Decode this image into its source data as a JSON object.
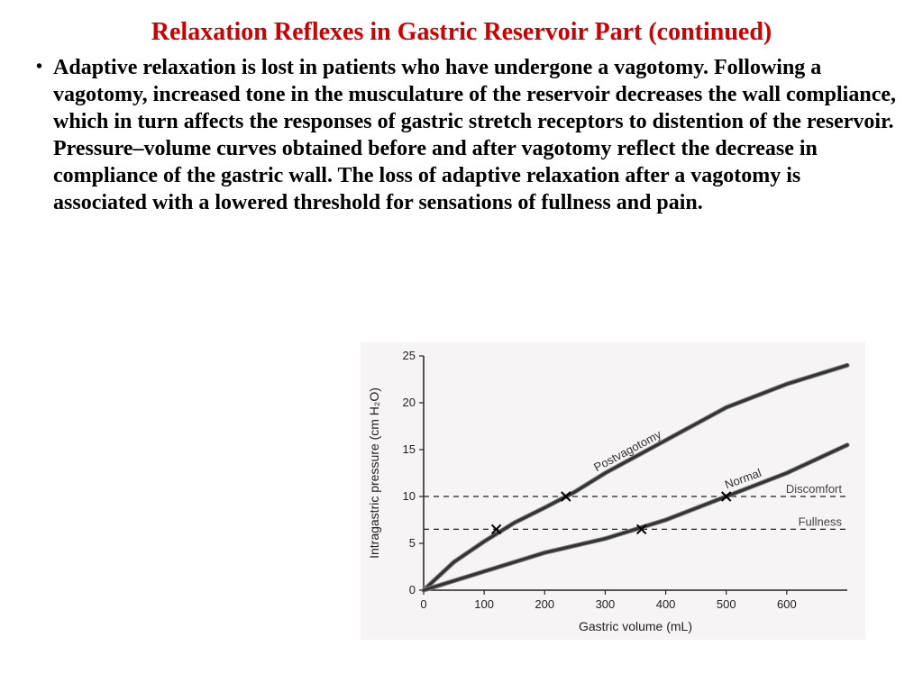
{
  "title": "Relaxation Reflexes in Gastric Reservoir Part (continued)",
  "bullet": "Adaptive relaxation is lost in patients who have undergone a vagotomy. Following a vagotomy, increased tone in the musculature of the reservoir decreases the wall compliance, which in turn affects the responses of gastric stretch receptors to distention of the reservoir. Pressure–volume curves obtained before and after vagotomy reflect the decrease in compliance of the gastric wall. The loss of adaptive relaxation after a vagotomy is associated with a lowered threshold for sensations of fullness and pain.",
  "chart": {
    "type": "line",
    "background_color": "#f6f4f4",
    "plot_bg": "#f6f4f4",
    "axis_color": "#222222",
    "curve_color": "#333333",
    "curve_stroke_width": 3.2,
    "curve_outline_color": "#888888",
    "dashed_color": "#222222",
    "dashed_pattern": "6,5",
    "x": {
      "label": "Gastric volume (mL)",
      "min": 0,
      "max": 700,
      "ticks": [
        0,
        100,
        200,
        300,
        400,
        500,
        600
      ]
    },
    "y": {
      "label": "Intragastric pressure (cm H₂O)",
      "min": 0,
      "max": 25,
      "ticks": [
        0,
        5,
        10,
        15,
        20,
        25
      ]
    },
    "series": [
      {
        "name": "Postvagotomy",
        "points": [
          [
            0,
            0
          ],
          [
            50,
            3
          ],
          [
            100,
            5.2
          ],
          [
            150,
            7.2
          ],
          [
            200,
            8.8
          ],
          [
            250,
            10.5
          ],
          [
            300,
            12.5
          ],
          [
            400,
            16
          ],
          [
            500,
            19.5
          ],
          [
            600,
            22
          ],
          [
            700,
            24
          ]
        ]
      },
      {
        "name": "Normal",
        "points": [
          [
            0,
            0
          ],
          [
            100,
            2
          ],
          [
            200,
            4
          ],
          [
            300,
            5.5
          ],
          [
            400,
            7.5
          ],
          [
            500,
            10
          ],
          [
            600,
            12.5
          ],
          [
            700,
            15.5
          ]
        ]
      }
    ],
    "thresholds": [
      {
        "label": "Discomfort",
        "y": 10
      },
      {
        "label": "Fullness",
        "y": 6.5
      }
    ],
    "markers": [
      {
        "x": 120,
        "y": 6.5
      },
      {
        "x": 235,
        "y": 10
      },
      {
        "x": 360,
        "y": 6.5
      },
      {
        "x": 500,
        "y": 10
      }
    ],
    "curve_labels": [
      {
        "text": "Postvagotomy",
        "x": 340,
        "y": 14.5,
        "angle": -28
      },
      {
        "text": "Normal",
        "x": 530,
        "y": 11.5,
        "angle": -20
      }
    ]
  }
}
